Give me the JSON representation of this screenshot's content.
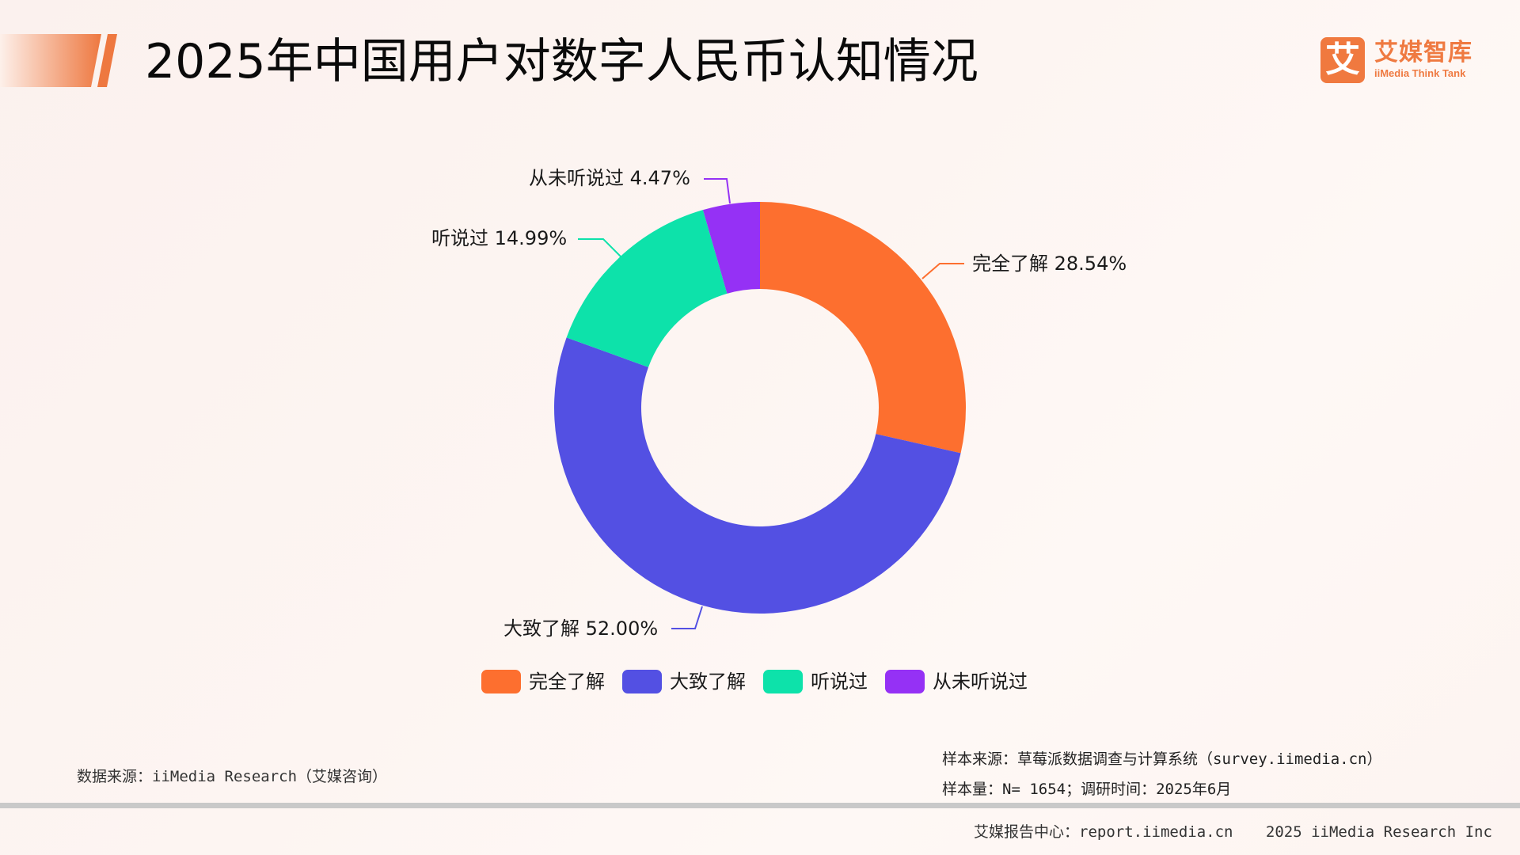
{
  "header": {
    "title": "2025年中国用户对数字人民币认知情况",
    "accent_gradient_from": "#fdeee8",
    "accent_gradient_to": "#ef7a41"
  },
  "logo": {
    "glyph": "艾",
    "name_cn": "艾媒智库",
    "name_en": "iiMedia Think Tank",
    "color": "#ef7a41"
  },
  "chart_data": {
    "type": "pie",
    "subtype": "donut",
    "title": "2025年中国用户对数字人民币认知情况",
    "categories": [
      "完全了解",
      "大致了解",
      "听说过",
      "从未听说过"
    ],
    "values": [
      28.54,
      52.0,
      14.99,
      4.47
    ],
    "unit": "%",
    "colors": [
      "#fd6f2f",
      "#5350e3",
      "#0de2aa",
      "#9531f5"
    ],
    "labels": [
      "完全了解 28.54%",
      "大致了解 52.00%",
      "听说过 14.99%",
      "从未听说过 4.47%"
    ],
    "start_angle": "12 o'clock, clockwise",
    "legend_position": "bottom",
    "center": [
      960,
      515
    ],
    "outer_radius": 260,
    "inner_radius": 150
  },
  "legend": {
    "items": [
      {
        "label": "完全了解",
        "color": "#fd6f2f"
      },
      {
        "label": "大致了解",
        "color": "#5350e3"
      },
      {
        "label": "听说过",
        "color": "#0de2aa"
      },
      {
        "label": "从未听说过",
        "color": "#9531f5"
      }
    ]
  },
  "notes": {
    "data_source": "数据来源：iiMedia Research（艾媒咨询）",
    "sample_source": "样本来源：草莓派数据调查与计算系统（survey.iimedia.cn）",
    "sample_size": "样本量：N= 1654；调研时间：2025年6月"
  },
  "footer": {
    "report_center": "艾媒报告中心：report.iimedia.cn",
    "copyright": "2025 iiMedia Research Inc"
  }
}
